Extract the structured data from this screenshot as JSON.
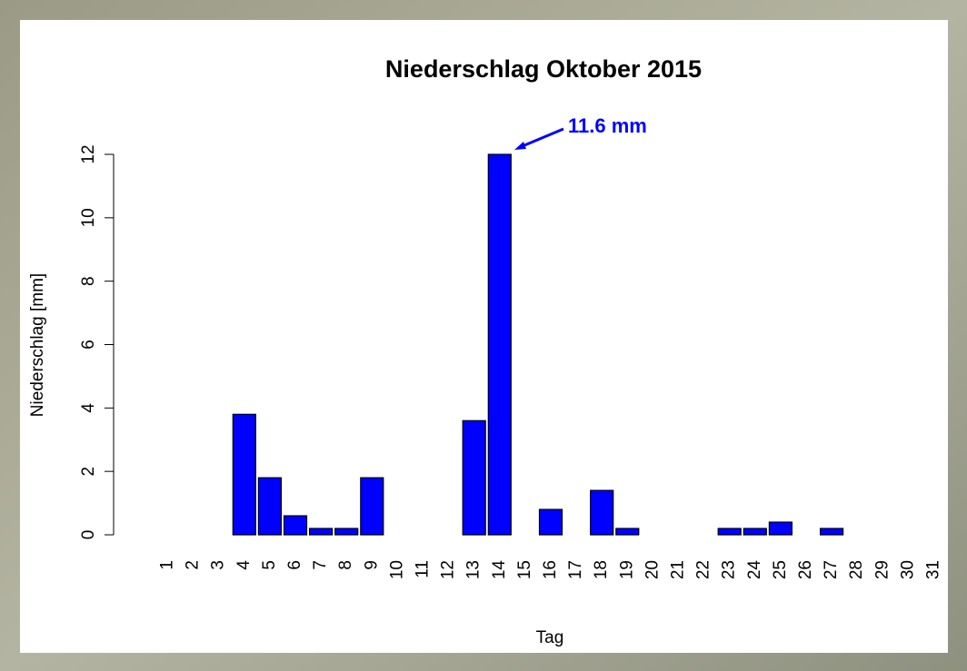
{
  "chart_data": {
    "type": "bar",
    "title": "Niederschlag Oktober 2015",
    "xlabel": "Tag",
    "ylabel": "Niederschlag [mm]",
    "annotation": "11.6 mm",
    "categories": [
      "1",
      "2",
      "3",
      "4",
      "5",
      "6",
      "7",
      "8",
      "9",
      "10",
      "11",
      "12",
      "13",
      "14",
      "15",
      "16",
      "17",
      "18",
      "19",
      "20",
      "21",
      "22",
      "23",
      "24",
      "25",
      "26",
      "27",
      "28",
      "29",
      "30",
      "31"
    ],
    "values": [
      0,
      0,
      0,
      3.8,
      1.8,
      0.6,
      0.2,
      0.2,
      1.8,
      0,
      0,
      0,
      3.6,
      12,
      0,
      0.8,
      0,
      1.4,
      0.2,
      0,
      0,
      0,
      0.2,
      0.2,
      0.4,
      0,
      0.2,
      0,
      0,
      0,
      0
    ],
    "color": "#0000ff",
    "ylim": [
      0,
      12
    ],
    "yticks": [
      0,
      2,
      4,
      6,
      8,
      10,
      12
    ],
    "grid": false
  }
}
